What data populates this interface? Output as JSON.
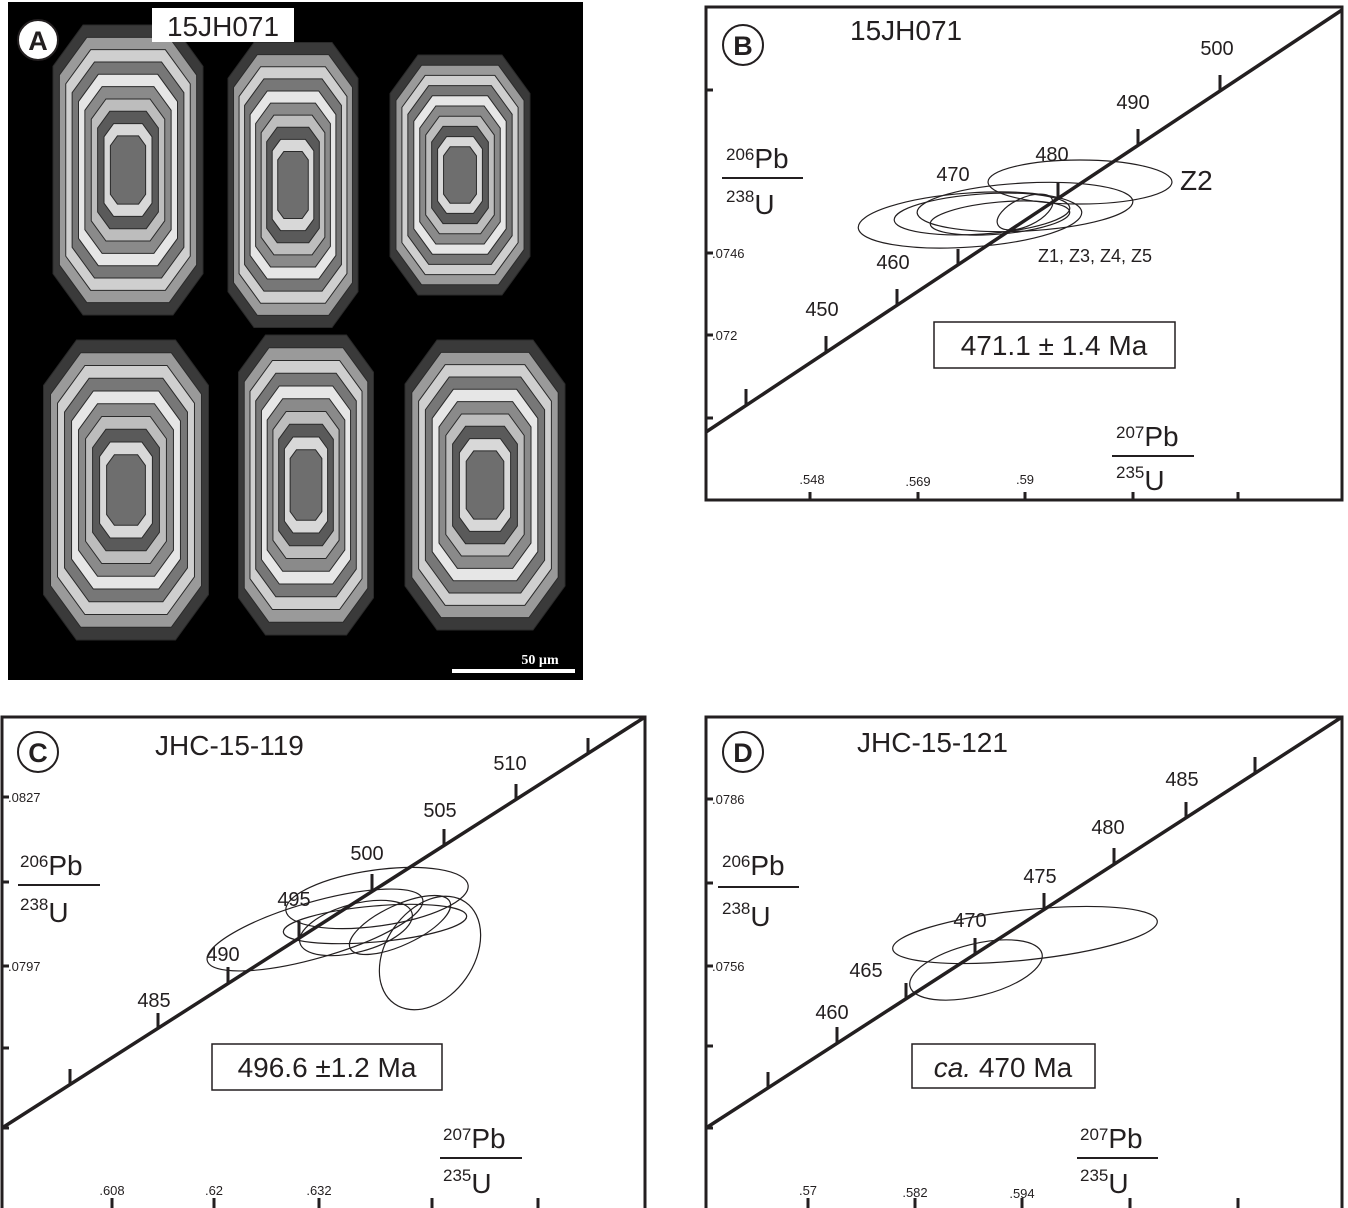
{
  "panels": [
    {
      "label": "A",
      "sample": "15JH071",
      "scale_bar": "50 µm"
    },
    {
      "label": "B",
      "sample": "15JH071",
      "concordia_ages": [
        "450",
        "460",
        "470",
        "480",
        "490",
        "500"
      ],
      "y_ticks": [
        ".0746",
        ".072"
      ],
      "x_ticks": [
        ".548",
        ".569",
        ".59"
      ],
      "y_axis": {
        "numerator_mass": "206",
        "numerator": "Pb",
        "denominator_mass": "238",
        "denominator": "U"
      },
      "x_axis": {
        "numerator_mass": "207",
        "numerator": "Pb",
        "denominator_mass": "235",
        "denominator": "U"
      },
      "ellipse_labels": [
        "Z2",
        "Z1, Z3, Z4, Z5"
      ],
      "age": "471.1 ± 1.4 Ma"
    },
    {
      "label": "C",
      "sample": "JHC-15-119",
      "concordia_ages": [
        "485",
        "490",
        "495",
        "500",
        "505",
        "510"
      ],
      "y_ticks": [
        ".0827",
        ".0797"
      ],
      "x_ticks": [
        ".608",
        ".62",
        ".632"
      ],
      "y_axis": {
        "numerator_mass": "206",
        "numerator": "Pb",
        "denominator_mass": "238",
        "denominator": "U"
      },
      "x_axis": {
        "numerator_mass": "207",
        "numerator": "Pb",
        "denominator_mass": "235",
        "denominator": "U"
      },
      "age": "496.6 ±1.2 Ma"
    },
    {
      "label": "D",
      "sample": "JHC-15-121",
      "concordia_ages": [
        "460",
        "465",
        "470",
        "475",
        "480",
        "485"
      ],
      "y_ticks": [
        ".0786",
        ".0756"
      ],
      "x_ticks": [
        ".57",
        ".582",
        ".594"
      ],
      "y_axis": {
        "numerator_mass": "206",
        "numerator": "Pb",
        "denominator_mass": "238",
        "denominator": "U"
      },
      "x_axis": {
        "numerator_mass": "207",
        "numerator": "Pb",
        "denominator_mass": "235",
        "denominator": "U"
      },
      "age_prefix": "ca.",
      "age": "470 Ma"
    }
  ]
}
